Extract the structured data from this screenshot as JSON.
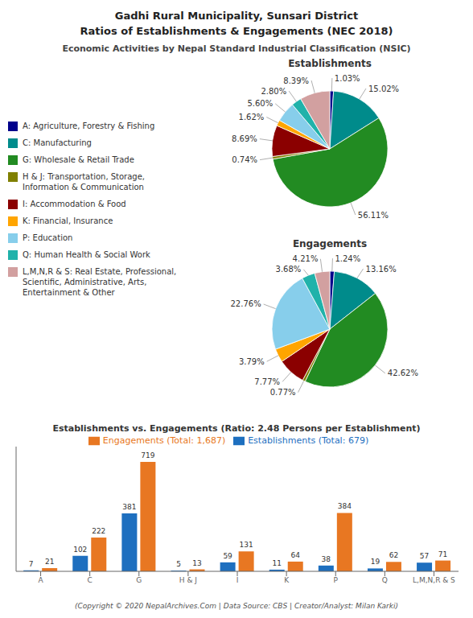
{
  "title": "Gadhi Rural Municipality, Sunsari District\nRatios of Establishments & Engagements (NEC 2018)",
  "subtitle": "Economic Activities by Nepal Standard Industrial Classification (NSIC)",
  "footer": "(Copyright © 2020 NepalArchives.Com | Data Source: CBS | Creator/Analyst: Milan Karki)",
  "chart_data": [
    {
      "type": "pie",
      "title": "Establishments",
      "categories": [
        "A: Agriculture, Forestry & Fishing",
        "C: Manufacturing",
        "G: Wholesale & Retail Trade",
        "H & J: Transportation, Storage,\nInformation & Communication",
        "I: Accommodation & Food",
        "K: Financial, Insurance",
        "P: Education",
        "Q: Human Health & Social Work",
        "L,M,N,R & S: Real Estate, Professional,\nScientific, Administrative, Arts,\nEntertainment & Other"
      ],
      "values": [
        1.03,
        15.02,
        56.11,
        0.74,
        8.69,
        1.62,
        5.6,
        2.8,
        8.39
      ],
      "value_labels": [
        "1.03%",
        "15.02%",
        "56.11%",
        "0.74%",
        "8.69%",
        "1.62%",
        "5.60%",
        "2.80%",
        "8.39%"
      ],
      "colors": [
        "#00008B",
        "#008B8B",
        "#228B22",
        "#808000",
        "#8B0000",
        "#FFA500",
        "#87CEEB",
        "#20B2AA",
        "#D2A0A0"
      ],
      "data_labels": true,
      "legend": "left"
    },
    {
      "type": "pie",
      "title": "Engagements",
      "categories": [
        "A: Agriculture, Forestry & Fishing",
        "C: Manufacturing",
        "G: Wholesale & Retail Trade",
        "H & J: Transportation, Storage,\nInformation & Communication",
        "I: Accommodation & Food",
        "K: Financial, Insurance",
        "P: Education",
        "Q: Human Health & Social Work",
        "L,M,N,R & S: Real Estate, Professional,\nScientific, Administrative, Arts,\nEntertainment & Other"
      ],
      "values": [
        1.24,
        13.16,
        42.62,
        0.77,
        7.77,
        3.79,
        22.76,
        3.68,
        4.21
      ],
      "value_labels": [
        "1.24%",
        "13.16%",
        "42.62%",
        "0.77%",
        "7.77%",
        "3.79%",
        "22.76%",
        "3.68%",
        "4.21%"
      ],
      "colors": [
        "#00008B",
        "#008B8B",
        "#228B22",
        "#808000",
        "#8B0000",
        "#FFA500",
        "#87CEEB",
        "#20B2AA",
        "#D2A0A0"
      ],
      "data_labels": true
    },
    {
      "type": "bar",
      "title": "Establishments vs. Engagements (Ratio: 2.48 Persons per Establishment)",
      "categories": [
        "A",
        "C",
        "G",
        "H & J",
        "I",
        "K",
        "P",
        "Q",
        "L,M,N,R & S"
      ],
      "series": [
        {
          "name": "Establishments (Total: 679)",
          "color": "#1E6FBF",
          "values": [
            7,
            102,
            381,
            5,
            59,
            11,
            38,
            19,
            57
          ]
        },
        {
          "name": "Engagements (Total: 1,687)",
          "color": "#E87722",
          "values": [
            21,
            222,
            719,
            13,
            131,
            64,
            384,
            62,
            71
          ]
        }
      ],
      "ylim": [
        0,
        820
      ],
      "data_labels": true,
      "legend": "top",
      "grid": false,
      "tick_labels": "x"
    }
  ]
}
